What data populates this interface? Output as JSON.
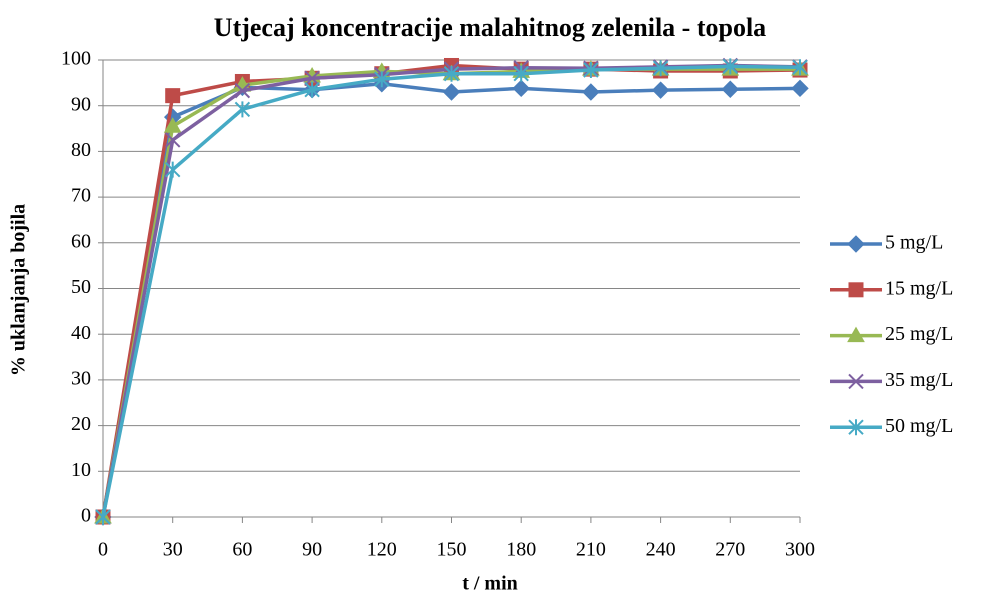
{
  "chart_data": {
    "type": "line",
    "title": "Utjecaj koncentracije malahitnog zelenila - topola",
    "x_label": "t / min",
    "y_label": "% uklanjanja bojila",
    "x": [
      0,
      30,
      60,
      90,
      120,
      150,
      180,
      210,
      240,
      270,
      300
    ],
    "xlim": [
      0,
      300
    ],
    "xticks": [
      0,
      30,
      60,
      90,
      120,
      150,
      180,
      210,
      240,
      270,
      300
    ],
    "ylim": [
      0,
      100
    ],
    "yticks": [
      0,
      10,
      20,
      30,
      40,
      50,
      60,
      70,
      80,
      90,
      100
    ],
    "grid": true,
    "legend": "right",
    "series": [
      {
        "name": "5 mg/L",
        "color": "#4a7ebb",
        "marker": "diamond",
        "values": [
          0,
          87.5,
          94,
          93.5,
          94.8,
          93,
          93.8,
          93,
          93.4,
          93.6,
          93.8
        ]
      },
      {
        "name": "15 mg/L",
        "color": "#be4b48",
        "marker": "square",
        "values": [
          0,
          92.2,
          95.3,
          96,
          97,
          98.8,
          98,
          98,
          97.6,
          97.6,
          97.8
        ]
      },
      {
        "name": "25 mg/L",
        "color": "#98b954",
        "marker": "triangle",
        "values": [
          0,
          85.5,
          94.5,
          96.5,
          97.5,
          97,
          97.5,
          98,
          98,
          98,
          98
        ]
      },
      {
        "name": "35 mg/L",
        "color": "#7d60a0",
        "marker": "x",
        "values": [
          0,
          82.5,
          93.3,
          96,
          96.8,
          98,
          98.3,
          98.2,
          98.5,
          98.8,
          98.5
        ]
      },
      {
        "name": "50 mg/L",
        "color": "#46aac5",
        "marker": "star",
        "values": [
          0,
          76,
          89.2,
          93.5,
          95.8,
          97,
          97,
          97.8,
          98.2,
          98.6,
          98.4
        ]
      }
    ]
  }
}
